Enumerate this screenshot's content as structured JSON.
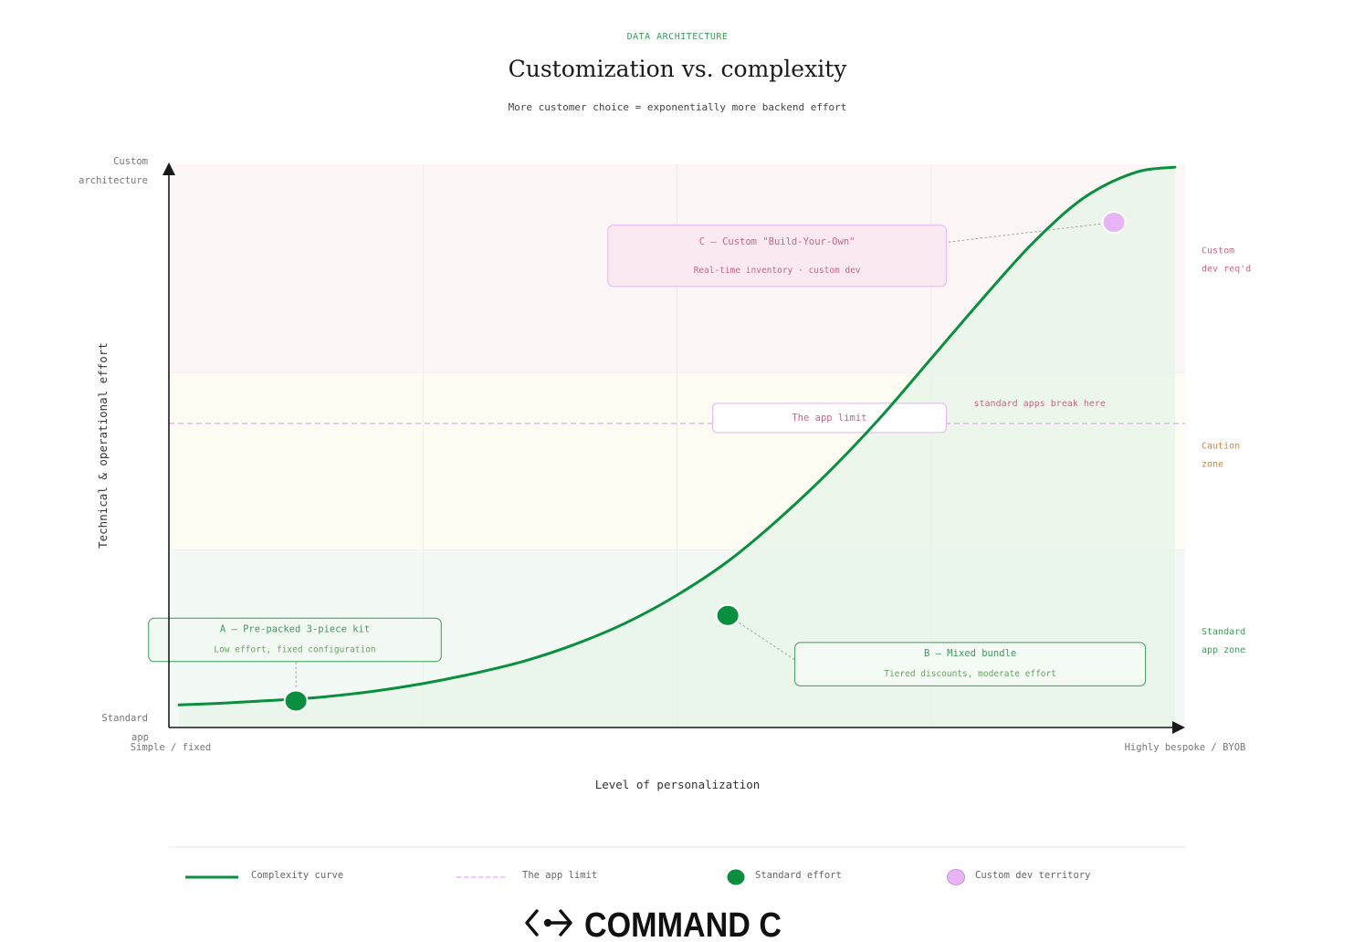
{
  "header": {
    "eyebrow": "DATA ARCHITECTURE",
    "title": "Customization vs. complexity",
    "subtitle": "More customer choice = exponentially more backend effort"
  },
  "colors": {
    "green": "#0a8f3e",
    "green_text": "#3d9a5a",
    "pink": "#e8b4f5",
    "pink_text": "#c0698a",
    "caution_text": "#c2884f",
    "zone_custom": "#fcf6f7",
    "zone_caution": "#fffcf3",
    "zone_standard": "#f3f9f4",
    "curve_fill": "#e7f4e8",
    "axis": "#1a1a1a",
    "muted": "#777777"
  },
  "chart_data": {
    "type": "line",
    "title": "Customization vs. complexity",
    "subtitle": "More customer choice = exponentially more backend effort",
    "xlabel": "Level of personalization",
    "ylabel": "Technical & operational effort",
    "xlim": [
      0,
      100
    ],
    "ylim": [
      0,
      100
    ],
    "x_tick_labels": [
      "Simple / fixed",
      "Highly bespoke / BYOB"
    ],
    "y_tick_labels": [
      "Standard app",
      "Custom architecture"
    ],
    "grid": true,
    "zones": [
      {
        "name": "Standard app zone",
        "label_lines": [
          "Standard",
          "app zone"
        ],
        "y_from": 0,
        "y_to": 31.5,
        "color_key": "zone_standard",
        "label_color_key": "green_text"
      },
      {
        "name": "Caution zone",
        "label_lines": [
          "Caution",
          "zone"
        ],
        "y_from": 31.5,
        "y_to": 63,
        "color_key": "zone_caution",
        "label_color_key": "caution_text"
      },
      {
        "name": "Custom dev req'd",
        "label_lines": [
          "Custom",
          "dev req'd"
        ],
        "y_from": 63,
        "y_to": 100,
        "color_key": "zone_custom",
        "label_color_key": "pink_text"
      }
    ],
    "threshold": {
      "name": "The app limit",
      "y": 54,
      "note": "standard apps break here"
    },
    "series": [
      {
        "name": "Complexity curve",
        "x": [
          1,
          5,
          10,
          15,
          20,
          25,
          30,
          35,
          40,
          45,
          50,
          55,
          60,
          65,
          70,
          75,
          80,
          85,
          90,
          95,
          99
        ],
        "y": [
          4,
          4.3,
          4.8,
          5.4,
          6.4,
          7.8,
          9.6,
          11.8,
          14.8,
          18.6,
          23.5,
          29.5,
          37,
          45.5,
          55,
          65.5,
          76,
          86,
          94,
          98.5,
          99.5
        ]
      }
    ],
    "points": [
      {
        "id": "A",
        "x": 12.5,
        "y": 4.7,
        "kind": "standard",
        "title": "A — Pre-packed 3-piece kit",
        "detail": "Low effort, fixed configuration"
      },
      {
        "id": "B",
        "x": 55,
        "y": 19.9,
        "kind": "standard",
        "title": "B — Mixed bundle",
        "detail": "Tiered discounts, moderate effort"
      },
      {
        "id": "C",
        "x": 93,
        "y": 89.7,
        "kind": "custom",
        "title": "C — Custom \"Build-Your-Own\"",
        "detail": "Real-time inventory · custom dev"
      }
    ],
    "legend": {
      "position": "bottom",
      "entries": [
        {
          "label": "Complexity curve",
          "kind": "line"
        },
        {
          "label": "The app limit",
          "kind": "dashed"
        },
        {
          "label": "Standard effort",
          "kind": "dot-green"
        },
        {
          "label": "Custom dev territory",
          "kind": "dot-pink"
        }
      ]
    }
  },
  "footer": {
    "brand": "COMMAND C"
  }
}
